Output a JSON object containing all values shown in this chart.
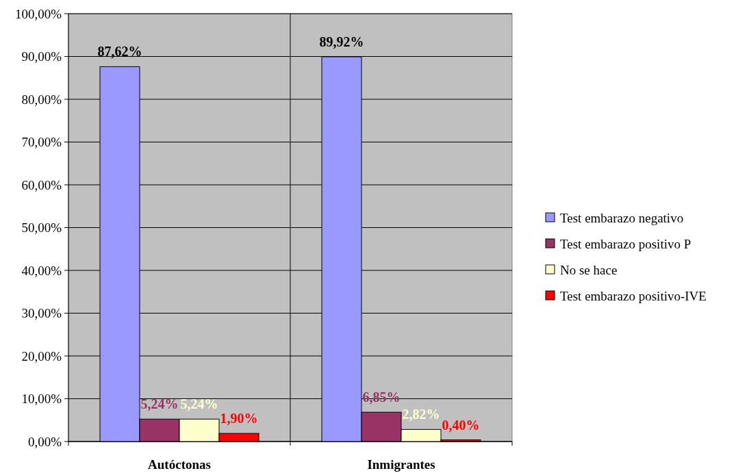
{
  "chart_data": {
    "type": "bar",
    "categories": [
      "Autóctonas",
      "Inmigrantes"
    ],
    "series": [
      {
        "name": "Test embarazo negativo",
        "color": "#9999ff",
        "values": [
          87.62,
          89.92
        ],
        "value_labels": [
          "87,62%",
          "89,92%"
        ]
      },
      {
        "name": "Test embarazo positivo P",
        "color": "#993366",
        "values": [
          5.24,
          6.85
        ],
        "value_labels": [
          "5,24%",
          "6,85%"
        ]
      },
      {
        "name": "No se hace",
        "color": "#ffffcc",
        "values": [
          5.24,
          2.82
        ],
        "value_labels": [
          "5,24%",
          "2,82%"
        ]
      },
      {
        "name": "Test embarazo positivo-IVE",
        "color": "#ff0000",
        "values": [
          1.9,
          0.4
        ],
        "value_labels": [
          "1,90%",
          "0,40%"
        ]
      }
    ],
    "ylim": [
      0,
      100
    ],
    "yticks": [
      {
        "value": 0,
        "label": "0,00%"
      },
      {
        "value": 10,
        "label": "10,00%"
      },
      {
        "value": 20,
        "label": "20,00%"
      },
      {
        "value": 30,
        "label": "30,00%"
      },
      {
        "value": 40,
        "label": "40,00%"
      },
      {
        "value": 50,
        "label": "50,00%"
      },
      {
        "value": 60,
        "label": "60,00%"
      },
      {
        "value": 70,
        "label": "70,00%"
      },
      {
        "value": 80,
        "label": "80,00%"
      },
      {
        "value": 90,
        "label": "90,00%"
      },
      {
        "value": 100,
        "label": "100,00%"
      }
    ],
    "grid": true,
    "legend": "right"
  }
}
